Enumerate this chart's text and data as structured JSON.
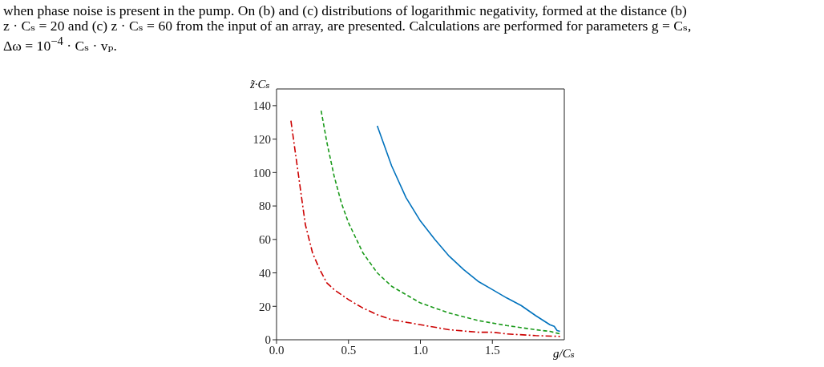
{
  "chart_data": {
    "type": "line",
    "annotations": [
      "when phase noise is present in the pump. On (b) and (c) distributions of logarithmic negativity, formed at the distance (b)",
      "z · Cₛ = 20 and (c) z · Cₛ = 60 from the input of an array, are presented. Calculations are performed for parameters g = Cₛ,",
      "Δω = 10$^{−4}$ · Cₛ · vₚ."
    ],
    "xlabel": "g/Cₛ",
    "ylabel": "z̃·Cₛ",
    "xlim": [
      0,
      2
    ],
    "xticks": [
      {
        "value": 0,
        "label": "0.0"
      },
      0.5,
      {
        "value": 1,
        "label": "1.0"
      },
      1.5
    ],
    "ylim": [
      0,
      150
    ],
    "yticks": [
      0,
      20,
      40,
      60,
      80,
      100,
      120,
      140
    ],
    "series": [
      {
        "color": "#0072bd",
        "line_style": "solid",
        "x": [
          0.7,
          0.8,
          0.9,
          1.0,
          1.1,
          1.2,
          1.3,
          1.4,
          1.5,
          1.6,
          1.7,
          1.8,
          1.9,
          1.93,
          1.95,
          1.97
        ],
        "values": [
          128,
          104,
          85,
          71,
          60,
          50,
          42,
          35,
          30,
          25,
          20.5,
          14.5,
          9,
          8,
          5.5,
          5
        ]
      },
      {
        "color": "#1a9a1a",
        "line_style": "dashed",
        "x": [
          0.31,
          0.35,
          0.4,
          0.45,
          0.5,
          0.6,
          0.7,
          0.8,
          0.9,
          1.0,
          1.2,
          1.4,
          1.6,
          1.8,
          1.9,
          1.97
        ],
        "values": [
          137,
          118,
          98,
          82,
          70,
          52,
          40,
          32,
          27,
          22,
          16,
          11.5,
          8.5,
          6,
          5,
          3.5
        ]
      },
      {
        "color": "#cc0000",
        "line_style": "dashdot",
        "x": [
          0.1,
          0.15,
          0.2,
          0.25,
          0.3,
          0.35,
          0.4,
          0.5,
          0.6,
          0.7,
          0.8,
          0.9,
          1.0,
          1.2,
          1.4,
          1.5,
          1.6,
          1.8,
          1.97
        ],
        "values": [
          131,
          100,
          69,
          52,
          42,
          34,
          30,
          24,
          19,
          15,
          12,
          10.5,
          9,
          6,
          4.5,
          4.5,
          3.5,
          2.5,
          2
        ]
      }
    ]
  }
}
